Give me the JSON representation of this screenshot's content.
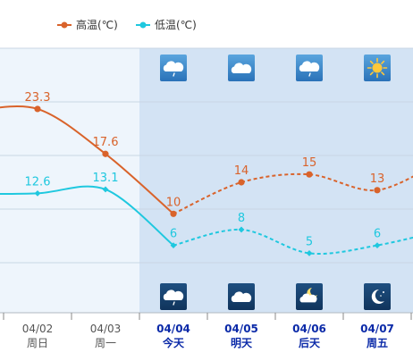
{
  "chart_data": {
    "type": "line",
    "categories": [
      {
        "date": "",
        "day": ""
      },
      {
        "date": "04/02",
        "day": "周日"
      },
      {
        "date": "04/03",
        "day": "周一"
      },
      {
        "date": "04/04",
        "day": "今天"
      },
      {
        "date": "04/05",
        "day": "明天"
      },
      {
        "date": "04/06",
        "day": "后天"
      },
      {
        "date": "04/07",
        "day": "周五"
      },
      {
        "date": "",
        "day": ""
      }
    ],
    "series": [
      {
        "name": "高温(℃)",
        "color": "#d9632b",
        "values": [
          23,
          23.3,
          17.6,
          10,
          14,
          15,
          13,
          17
        ],
        "labels": [
          "",
          "23.3",
          "17.6",
          "10",
          "14",
          "15",
          "13",
          ""
        ]
      },
      {
        "name": "低温(℃)",
        "color": "#1fc8df",
        "values": [
          12.5,
          12.6,
          13.1,
          6,
          8,
          5,
          6,
          8
        ],
        "labels": [
          "",
          "12.6",
          "13.1",
          "6",
          "8",
          "5",
          "6",
          ""
        ]
      }
    ],
    "forecast_start_index": 3,
    "ylim": [
      -3,
      31
    ],
    "grid": true,
    "legend": "top",
    "day_icons": [
      "",
      "",
      "",
      "light-rain-icon",
      "cloudy-icon",
      "light-rain-icon",
      "sunny-icon",
      ""
    ],
    "night_icons": [
      "",
      "",
      "",
      "light-rain-icon",
      "cloudy-icon",
      "partly-cloudy-night-icon",
      "clear-night-icon",
      ""
    ]
  },
  "colors": {
    "history_bg": "#eef5fc",
    "forecast_bg": "#d3e3f4",
    "grid": "#c8d6e5",
    "forecast_text": "#0b2aa8"
  }
}
